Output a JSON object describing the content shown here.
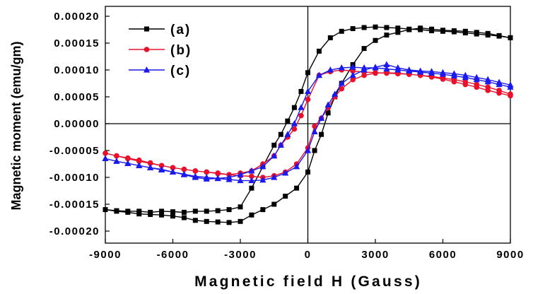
{
  "chart_data": {
    "type": "line",
    "xlabel": "Magnetic field H (Gauss)",
    "ylabel": "Magnetic moment (emu/gm)",
    "xlim": [
      -9000,
      9000
    ],
    "ylim": [
      -0.00022,
      0.00022
    ],
    "xticks": [
      "-9000",
      "-6000",
      "-3000",
      "0",
      "3000",
      "6000",
      "9000"
    ],
    "yticks": [
      "0.00020",
      "0.00015",
      "0.00010",
      "0.00005",
      "0.00000",
      "-0.00005",
      "-0.00010",
      "-0.00015",
      "-0.00020"
    ],
    "grid": false,
    "legend_position": "top-left",
    "series": [
      {
        "name": "(a)",
        "color": "#000000",
        "marker": "square",
        "x": [
          9000,
          8500,
          8000,
          7500,
          7000,
          6500,
          6000,
          5500,
          5000,
          4500,
          4000,
          3500,
          3000,
          2500,
          2000,
          1500,
          1000,
          500,
          0,
          -300,
          -600,
          -900,
          -1200,
          -1500,
          -2000,
          -2500,
          -3000,
          -3500,
          -4000,
          -4500,
          -5000,
          -5500,
          -6000,
          -6500,
          -7000,
          -7500,
          -8000,
          -8500,
          -9000,
          -8500,
          -8000,
          -7500,
          -7000,
          -6500,
          -6000,
          -5500,
          -5000,
          -4500,
          -4000,
          -3500,
          -3000,
          -2500,
          -2000,
          -1500,
          -1000,
          -500,
          0,
          300,
          600,
          900,
          1200,
          1500,
          2000,
          2500,
          3000,
          3500,
          4000,
          4500,
          5000,
          5500,
          6000,
          6500,
          7000,
          7500,
          8000,
          8500,
          9000
        ],
        "y": [
          0.00016,
          0.000163,
          0.000165,
          0.000167,
          0.000169,
          0.000171,
          0.000172,
          0.000173,
          0.000175,
          0.000176,
          0.000178,
          0.000179,
          0.00018,
          0.000179,
          0.000177,
          0.000172,
          0.00016,
          0.000135,
          9.5e-05,
          6e-05,
          3e-05,
          5e-06,
          -2e-05,
          -4e-05,
          -8e-05,
          -0.00012,
          -0.000155,
          -0.00016,
          -0.000162,
          -0.000163,
          -0.000163,
          -0.000165,
          -0.000164,
          -0.000163,
          -0.000165,
          -0.000163,
          -0.000163,
          -0.000162,
          -0.00016,
          -0.000163,
          -0.000165,
          -0.000168,
          -0.000169,
          -0.00017,
          -0.000172,
          -0.000175,
          -0.00018,
          -0.000182,
          -0.000183,
          -0.000184,
          -0.000182,
          -0.00017,
          -0.00016,
          -0.00015,
          -0.000135,
          -0.00012,
          -9e-05,
          -5e-05,
          -2e-05,
          2e-05,
          5e-05,
          7.5e-05,
          0.00011,
          0.00014,
          0.000155,
          0.000165,
          0.00017,
          0.000175,
          0.000178,
          0.000176,
          0.000174,
          0.000173,
          0.000172,
          0.00017,
          0.000168,
          0.000164,
          0.00016
        ]
      },
      {
        "name": "(b)",
        "color": "#e8102a",
        "marker": "circle",
        "x": [
          9000,
          8500,
          8000,
          7500,
          7000,
          6500,
          6000,
          5500,
          5000,
          4500,
          4000,
          3500,
          3000,
          2500,
          2000,
          1500,
          1000,
          500,
          0,
          -300,
          -600,
          -900,
          -1200,
          -1500,
          -2000,
          -2500,
          -3000,
          -3500,
          -4000,
          -4500,
          -5000,
          -5500,
          -6000,
          -6500,
          -7000,
          -7500,
          -8000,
          -8500,
          -9000,
          -8500,
          -8000,
          -7500,
          -7000,
          -6500,
          -6000,
          -5500,
          -5000,
          -4500,
          -4000,
          -3500,
          -3000,
          -2500,
          -2000,
          -1500,
          -1000,
          -500,
          0,
          300,
          600,
          900,
          1200,
          1500,
          2000,
          2500,
          3000,
          3500,
          4000,
          4500,
          5000,
          5500,
          6000,
          6500,
          7000,
          7500,
          8000,
          8500,
          9000
        ],
        "y": [
          5.5e-05,
          6.2e-05,
          6.8e-05,
          7.3e-05,
          7.8e-05,
          8.2e-05,
          8.5e-05,
          8.8e-05,
          9e-05,
          9.2e-05,
          9.3e-05,
          9.4e-05,
          9.5e-05,
          9.6e-05,
          9.8e-05,
          0.0001,
          9.7e-05,
          9e-05,
          4.5e-05,
          1.5e-05,
          -1e-05,
          -2.5e-05,
          -4e-05,
          -6e-05,
          -7.5e-05,
          -8.8e-05,
          -9.2e-05,
          -9.5e-05,
          -9.2e-05,
          -9e-05,
          -8.8e-05,
          -8.5e-05,
          -8.2e-05,
          -7.8e-05,
          -7.3e-05,
          -6.8e-05,
          -6.4e-05,
          -6e-05,
          -5.5e-05,
          -6e-05,
          -6.5e-05,
          -7e-05,
          -7.4e-05,
          -7.8e-05,
          -8.2e-05,
          -8.5e-05,
          -8.8e-05,
          -9e-05,
          -9.3e-05,
          -9.5e-05,
          -9.7e-05,
          -9.8e-05,
          -0.0001,
          -9.7e-05,
          -9e-05,
          -7.5e-05,
          -4.5e-05,
          -5e-06,
          1e-05,
          3e-05,
          5e-05,
          6.5e-05,
          8.2e-05,
          9e-05,
          9.4e-05,
          9.5e-05,
          9.4e-05,
          9.2e-05,
          9e-05,
          8.7e-05,
          8.3e-05,
          7.8e-05,
          7.3e-05,
          6.8e-05,
          6.2e-05,
          5.7e-05,
          5.2e-05
        ]
      },
      {
        "name": "(c)",
        "color": "#1a1aee",
        "marker": "triangle",
        "x": [
          9000,
          8500,
          8000,
          7500,
          7000,
          6500,
          6000,
          5500,
          5000,
          4500,
          4000,
          3500,
          3000,
          2500,
          2000,
          1500,
          1000,
          500,
          0,
          -300,
          -600,
          -900,
          -1200,
          -1500,
          -2000,
          -2500,
          -3000,
          -3500,
          -4000,
          -4500,
          -5000,
          -5500,
          -6000,
          -6500,
          -7000,
          -7500,
          -8000,
          -8500,
          -9000,
          -8500,
          -8000,
          -7500,
          -7000,
          -6500,
          -6000,
          -5500,
          -5000,
          -4500,
          -4000,
          -3500,
          -3000,
          -2500,
          -2000,
          -1500,
          -1000,
          -500,
          0,
          300,
          600,
          900,
          1200,
          1500,
          2000,
          2500,
          3000,
          3500,
          4000,
          4500,
          5000,
          5500,
          6000,
          6500,
          7000,
          7500,
          8000,
          8500,
          9000
        ],
        "y": [
          6.8e-05,
          7.3e-05,
          7.8e-05,
          8.2e-05,
          8.6e-05,
          8.9e-05,
          9.2e-05,
          9.4e-05,
          9.6e-05,
          9.8e-05,
          0.0001,
          0.000102,
          0.000104,
          0.000104,
          0.000105,
          0.000104,
          0.0001,
          9e-05,
          6e-05,
          3e-05,
          0.0,
          -2e-05,
          -4e-05,
          -6e-05,
          -8e-05,
          -8.8e-05,
          -9.5e-05,
          -0.0001,
          -0.000102,
          -0.000103,
          -0.0001,
          -9.5e-05,
          -9e-05,
          -8.5e-05,
          -8.2e-05,
          -7.8e-05,
          -7.4e-05,
          -7e-05,
          -6.5e-05,
          -7e-05,
          -7.4e-05,
          -7.8e-05,
          -8.2e-05,
          -8.6e-05,
          -9e-05,
          -9.4e-05,
          -9.8e-05,
          -0.0001,
          -0.000102,
          -0.000104,
          -0.000106,
          -0.000106,
          -0.000105,
          -0.0001,
          -9.2e-05,
          -8e-05,
          -5e-05,
          -1.5e-05,
          1e-05,
          3.5e-05,
          5.5e-05,
          7.5e-05,
          9e-05,
          0.0001,
          0.000105,
          0.00011,
          0.000104,
          0.0001,
          9.8e-05,
          9.7e-05,
          9.5e-05,
          9.3e-05,
          9e-05,
          8.6e-05,
          8.2e-05,
          7.7e-05,
          7.2e-05
        ]
      }
    ]
  }
}
